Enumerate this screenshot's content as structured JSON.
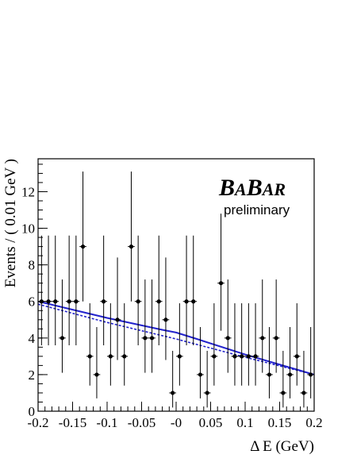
{
  "chart_data": {
    "type": "scatter",
    "experiment_logo": "BABAR",
    "logo_parts": [
      "B",
      "A",
      "B",
      "AR"
    ],
    "annotation": "preliminary",
    "xlabel": "Δ E (GeV)",
    "ylabel": "Events / ( 0.01 GeV )",
    "xlim": [
      -0.2,
      0.2
    ],
    "ylim": [
      0,
      13.8
    ],
    "xticks": [
      -0.2,
      -0.15,
      -0.1,
      -0.05,
      0,
      0.05,
      0.1,
      0.15,
      0.2
    ],
    "xtick_labels": [
      "-0.2",
      "-0.15",
      "-0.1",
      "-0.05",
      "-0",
      "0.05",
      "0.1",
      "0.15",
      "0.2"
    ],
    "yticks": [
      0,
      2,
      4,
      6,
      8,
      10,
      12
    ],
    "ytick_labels": [
      "0",
      "2",
      "4",
      "6",
      "8",
      "10",
      "12"
    ],
    "grid": false,
    "series": [
      {
        "kind": "data",
        "x": [
          -0.195,
          -0.185,
          -0.175,
          -0.165,
          -0.155,
          -0.145,
          -0.135,
          -0.125,
          -0.115,
          -0.105,
          -0.095,
          -0.085,
          -0.075,
          -0.065,
          -0.055,
          -0.045,
          -0.035,
          -0.025,
          -0.015,
          -0.005,
          0.005,
          0.015,
          0.025,
          0.035,
          0.045,
          0.055,
          0.065,
          0.075,
          0.085,
          0.095,
          0.105,
          0.115,
          0.125,
          0.135,
          0.145,
          0.155,
          0.165,
          0.175,
          0.185,
          0.195
        ],
        "y": [
          6,
          6,
          6,
          4,
          6,
          6,
          9,
          3,
          2,
          6,
          3,
          5,
          3,
          9,
          6,
          4,
          4,
          6,
          5,
          1,
          3,
          6,
          6,
          2,
          1,
          3,
          7,
          4,
          3,
          3,
          3,
          3,
          4,
          2,
          4,
          1,
          2,
          3,
          1,
          2
        ],
        "yerr_low": [
          2.4,
          2.4,
          2.4,
          1.9,
          2.4,
          2.4,
          3.0,
          1.6,
          1.3,
          2.4,
          1.6,
          2.2,
          1.6,
          3.0,
          2.4,
          1.9,
          1.9,
          2.4,
          2.2,
          0.8,
          1.6,
          2.4,
          2.4,
          1.3,
          0.8,
          1.6,
          2.6,
          1.9,
          1.6,
          1.6,
          1.6,
          1.6,
          1.9,
          1.3,
          1.9,
          0.8,
          1.3,
          1.6,
          0.8,
          1.3
        ],
        "yerr_high": [
          3.6,
          3.6,
          3.6,
          3.2,
          3.6,
          3.6,
          4.1,
          2.9,
          2.6,
          3.6,
          2.9,
          3.4,
          2.9,
          4.1,
          3.6,
          3.2,
          3.2,
          3.6,
          3.4,
          2.3,
          2.9,
          3.6,
          3.6,
          2.6,
          2.3,
          2.9,
          3.8,
          3.2,
          2.9,
          2.9,
          2.9,
          2.9,
          3.2,
          2.6,
          3.2,
          2.3,
          2.6,
          2.9,
          2.3,
          2.6
        ],
        "xerr": 0.005
      },
      {
        "kind": "fit-total",
        "style": "solid",
        "color": "#2222cc",
        "x": [
          -0.2,
          -0.1,
          -0.02,
          0.0,
          0.03,
          0.1,
          0.2
        ],
        "y": [
          6.0,
          5.1,
          4.45,
          4.3,
          3.95,
          3.1,
          2.0
        ]
      },
      {
        "kind": "fit-background",
        "style": "dashed",
        "color": "#2222cc",
        "x": [
          -0.2,
          -0.1,
          0.0,
          0.1,
          0.2
        ],
        "y": [
          5.85,
          4.85,
          3.95,
          2.95,
          2.0
        ]
      }
    ]
  }
}
